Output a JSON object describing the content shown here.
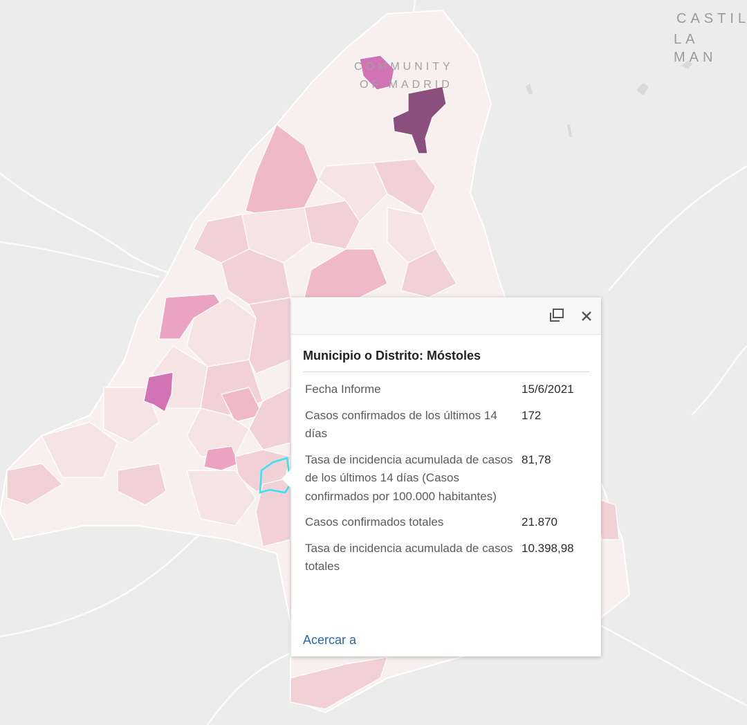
{
  "map": {
    "labels": {
      "region_line1": "COMMUNITY",
      "region_line2": "OF MADRID",
      "neighbor_line1": "CASTIL",
      "neighbor_line2": "LA MAN"
    },
    "colors": {
      "background": "#ececec",
      "region_fill_low": "#f7f0ef",
      "fill_1": "#f6e4e4",
      "fill_2": "#f2d1d6",
      "fill_3": "#efb9c9",
      "fill_4": "#eba3c2",
      "fill_5": "#d173b4",
      "fill_6": "#8a4f7c",
      "selected_outline": "#2ee6f0"
    },
    "selected_feature": "Móstoles"
  },
  "popup": {
    "title": "Municipio o Distrito: Móstoles",
    "rows": [
      {
        "label": "Fecha Informe",
        "value": "15/6/2021"
      },
      {
        "label": "Casos confirmados de los últimos 14 días",
        "value": "172"
      },
      {
        "label": "Tasa de incidencia acumulada de casos de los últimos 14 días (Casos confirmados por 100.000 habitantes)",
        "value": "81,78"
      },
      {
        "label": "Casos confirmados totales",
        "value": "21.870"
      },
      {
        "label": "Tasa de incidencia acumulada de casos totales",
        "value": "10.398,98"
      }
    ],
    "zoom_link": "Acercar a",
    "icons": {
      "dock": "dock-icon",
      "close": "close-icon"
    }
  }
}
